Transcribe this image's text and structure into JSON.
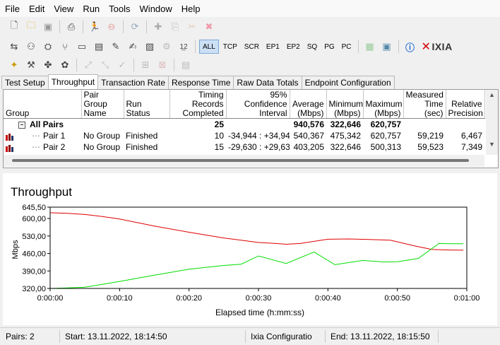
{
  "menu": [
    "File",
    "Edit",
    "View",
    "Run",
    "Tools",
    "Window",
    "Help"
  ],
  "toolbar1_icons": [
    "new-file-icon",
    "open-folder-icon",
    "save-icon",
    "print-icon",
    "run-icon",
    "stop-icon",
    "refresh-icon",
    "add-pair-icon",
    "copy-icon",
    "cut-icon",
    "delete-icon"
  ],
  "protocol_tabs": [
    "ALL",
    "TCP",
    "SCR",
    "EP1",
    "EP2",
    "SQ",
    "PG",
    "PC"
  ],
  "brand": "IXIA",
  "tabs": [
    "Test Setup",
    "Throughput",
    "Transaction Rate",
    "Response Time",
    "Raw Data Totals",
    "Endpoint Configuration"
  ],
  "grid": {
    "headers": [
      "Group",
      "Pair Group Name",
      "Run Status",
      "Timing Records Completed",
      "95% Confidence Interval",
      "Average (Mbps)",
      "Minimum (Mbps)",
      "Maximum (Mbps)",
      "Measured Time (sec)",
      "Relative Precision"
    ],
    "all_pairs": {
      "label": "All Pairs",
      "expander": "−",
      "records": "25",
      "average": "940,576",
      "minimum": "322,646",
      "maximum": "620,757"
    },
    "rows": [
      {
        "name": "Pair 1",
        "group": "No Group",
        "status": "Finished",
        "records": "10",
        "ci": "-34,944 : +34,944",
        "average": "540,367",
        "minimum": "475,342",
        "maximum": "620,757",
        "time": "59,219",
        "precision": "6,467"
      },
      {
        "name": "Pair 2",
        "group": "No Group",
        "status": "Finished",
        "records": "15",
        "ci": "-29,630 : +29,630",
        "average": "403,205",
        "minimum": "322,646",
        "maximum": "500,313",
        "time": "59,523",
        "precision": "7,349"
      }
    ]
  },
  "chart_data": {
    "type": "line",
    "title": "Throughput",
    "xlabel": "Elapsed time (h:mm:ss)",
    "ylabel": "Mbps",
    "y_ticks": [
      "645,50",
      "600,00",
      "530,00",
      "460,00",
      "390,00",
      "320,00"
    ],
    "y_tick_values": [
      645.5,
      600,
      530,
      460,
      390,
      320
    ],
    "ylim": [
      320,
      645.5
    ],
    "x_ticks": [
      "0:00:00",
      "0:00:10",
      "0:00:20",
      "0:00:30",
      "0:00:40",
      "0:00:50",
      "0:01:00"
    ],
    "x_tick_values": [
      0,
      10,
      20,
      30,
      40,
      50,
      60
    ],
    "xlim": [
      0,
      60
    ],
    "grid": false,
    "series": [
      {
        "color": "#e00000",
        "x": [
          0,
          2.5,
          5,
          7.5,
          10,
          15,
          20,
          25,
          27.5,
          30,
          32.5,
          34,
          36,
          40,
          43,
          46,
          49,
          52.5,
          55,
          57.5,
          59.5
        ],
        "y": [
          623,
          621,
          616,
          608,
          598,
          570,
          545,
          522,
          513,
          504,
          500,
          497,
          500,
          517,
          518,
          516,
          513,
          490,
          476,
          474,
          473
        ]
      },
      {
        "color": "#00dd00",
        "x": [
          0,
          2.5,
          5,
          10,
          15,
          20,
          25,
          27.5,
          30,
          34,
          38,
          41,
          45,
          48,
          50,
          53,
          56,
          58,
          59.5
        ],
        "y": [
          320,
          322,
          325,
          348,
          373,
          397,
          412,
          417,
          450,
          420,
          466,
          415,
          432,
          426,
          427,
          440,
          500,
          499,
          499
        ]
      }
    ]
  },
  "status": {
    "pairs": "Pairs: 2",
    "start": "Start: 13.11.2022, 18:14:50",
    "config": "Ixia Configuratio",
    "end": "End: 13.11.2022, 18:15:50"
  }
}
